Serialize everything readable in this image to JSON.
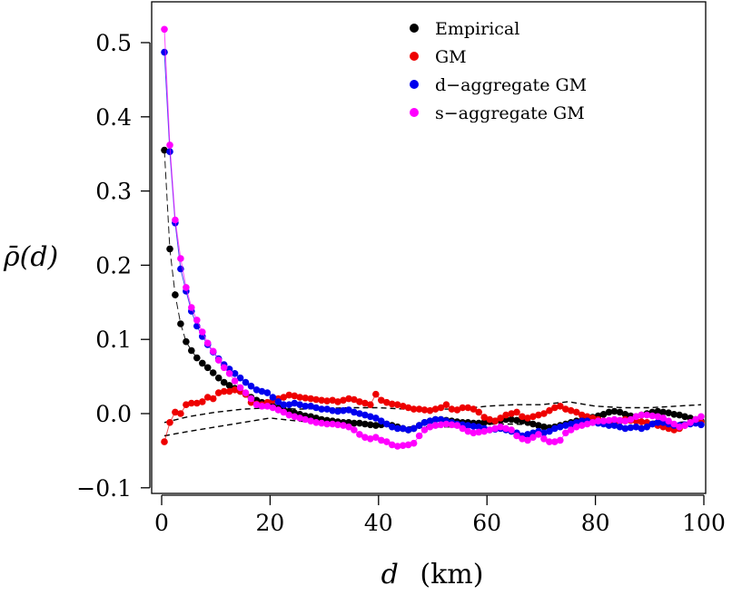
{
  "chart_data": {
    "type": "scatter",
    "title": "",
    "xlabel_var": "d",
    "xlabel_unit": "(km)",
    "ylabel_main": "ρ̄",
    "ylabel_arg": "(d)",
    "xlim": [
      0,
      100
    ],
    "ylim": [
      -0.1,
      0.55
    ],
    "x_ticks": [
      0,
      20,
      40,
      60,
      80,
      100
    ],
    "x_tick_labels": [
      "0",
      "20",
      "40",
      "60",
      "80",
      "100"
    ],
    "y_ticks": [
      -0.1,
      0.0,
      0.1,
      0.2,
      0.3,
      0.4,
      0.5
    ],
    "y_tick_labels": [
      "−0.1",
      "0.0",
      "0.1",
      "0.2",
      "0.3",
      "0.4",
      "0.5"
    ],
    "legend_position": "top-right",
    "legend": [
      {
        "label": "Empirical",
        "color": "#000000"
      },
      {
        "label": "GM",
        "color": "#ee0000"
      },
      {
        "label": "d−aggregate GM",
        "color": "#0000ee"
      },
      {
        "label": "s−aggregate GM",
        "color": "#ff00ff"
      }
    ],
    "series": [
      {
        "name": "Empirical",
        "color": "#000000",
        "x": [
          0.5,
          1.5,
          2.5,
          3.5,
          4.5,
          5.5,
          6.5,
          7.5,
          8.5,
          9.5,
          10.5,
          11.5,
          12.5,
          13.5,
          14.5,
          15.5,
          16.5,
          17.5,
          18.5,
          19.5,
          20.5,
          21.5,
          22.5,
          23.5,
          24.5,
          25.5,
          26.5,
          27.5,
          28.5,
          29.5,
          30.5,
          31.5,
          32.5,
          33.5,
          34.5,
          35.5,
          36.5,
          37.5,
          38.5,
          39.5,
          40.5,
          41.5,
          42.5,
          43.5,
          44.5,
          45.5,
          46.5,
          47.5,
          48.5,
          49.5,
          50.5,
          51.5,
          52.5,
          53.5,
          54.5,
          55.5,
          56.5,
          57.5,
          58.5,
          59.5,
          60.5,
          61.5,
          62.5,
          63.5,
          64.5,
          65.5,
          66.5,
          67.5,
          68.5,
          69.5,
          70.5,
          71.5,
          72.5,
          73.5,
          74.5,
          75.5,
          76.5,
          77.5,
          78.5,
          79.5,
          80.5,
          81.5,
          82.5,
          83.5,
          84.5,
          85.5,
          86.5,
          87.5,
          88.5,
          89.5,
          90.5,
          91.5,
          92.5,
          93.5,
          94.5,
          95.5,
          96.5,
          97.5,
          98.5,
          99.5
        ],
        "y": [
          0.355,
          0.222,
          0.16,
          0.121,
          0.097,
          0.085,
          0.075,
          0.068,
          0.062,
          0.055,
          0.048,
          0.042,
          0.038,
          0.034,
          0.03,
          0.026,
          0.022,
          0.018,
          0.015,
          0.012,
          0.01,
          0.008,
          0.005,
          0.003,
          0.001,
          -0.001,
          -0.003,
          -0.004,
          -0.006,
          -0.008,
          -0.009,
          -0.01,
          -0.011,
          -0.012,
          -0.012,
          -0.013,
          -0.013,
          -0.014,
          -0.015,
          -0.016,
          -0.015,
          -0.014,
          -0.016,
          -0.018,
          -0.02,
          -0.022,
          -0.02,
          -0.016,
          -0.012,
          -0.01,
          -0.008,
          -0.008,
          -0.009,
          -0.01,
          -0.011,
          -0.012,
          -0.012,
          -0.013,
          -0.013,
          -0.012,
          -0.011,
          -0.01,
          -0.009,
          -0.008,
          -0.008,
          -0.009,
          -0.01,
          -0.012,
          -0.014,
          -0.016,
          -0.018,
          -0.019,
          -0.018,
          -0.016,
          -0.014,
          -0.012,
          -0.01,
          -0.009,
          -0.007,
          -0.005,
          -0.003,
          -0.001,
          0.002,
          0.003,
          0.002,
          -0.001,
          -0.003,
          -0.004,
          -0.002,
          0.0,
          0.002,
          0.003,
          0.002,
          0.001,
          -0.001,
          -0.002,
          -0.004,
          -0.006,
          -0.008,
          -0.01
        ]
      },
      {
        "name": "GM",
        "color": "#ee0000",
        "x": [
          0.5,
          1.5,
          2.5,
          3.5,
          4.5,
          5.5,
          6.5,
          7.5,
          8.5,
          9.5,
          10.5,
          11.5,
          12.5,
          13.5,
          14.5,
          15.5,
          16.5,
          17.5,
          18.5,
          19.5,
          20.5,
          21.5,
          22.5,
          23.5,
          24.5,
          25.5,
          26.5,
          27.5,
          28.5,
          29.5,
          30.5,
          31.5,
          32.5,
          33.5,
          34.5,
          35.5,
          36.5,
          37.5,
          38.5,
          39.5,
          40.5,
          41.5,
          42.5,
          43.5,
          44.5,
          45.5,
          46.5,
          47.5,
          48.5,
          49.5,
          50.5,
          51.5,
          52.5,
          53.5,
          54.5,
          55.5,
          56.5,
          57.5,
          58.5,
          59.5,
          60.5,
          61.5,
          62.5,
          63.5,
          64.5,
          65.5,
          66.5,
          67.5,
          68.5,
          69.5,
          70.5,
          71.5,
          72.5,
          73.5,
          74.5,
          75.5,
          76.5,
          77.5,
          78.5,
          79.5,
          80.5,
          81.5,
          82.5,
          83.5,
          84.5,
          85.5,
          86.5,
          87.5,
          88.5,
          89.5,
          90.5,
          91.5,
          92.5,
          93.5,
          94.5,
          95.5,
          96.5,
          97.5,
          98.5,
          99.5
        ],
        "y": [
          -0.038,
          -0.012,
          0.002,
          0.0,
          0.012,
          0.014,
          0.014,
          0.016,
          0.022,
          0.02,
          0.028,
          0.03,
          0.03,
          0.032,
          0.03,
          0.026,
          0.015,
          0.013,
          0.012,
          0.015,
          0.018,
          0.02,
          0.022,
          0.025,
          0.024,
          0.022,
          0.021,
          0.02,
          0.019,
          0.018,
          0.017,
          0.018,
          0.016,
          0.018,
          0.02,
          0.019,
          0.016,
          0.014,
          0.012,
          0.026,
          0.018,
          0.015,
          0.013,
          0.012,
          0.01,
          0.008,
          0.006,
          0.006,
          0.005,
          0.004,
          0.006,
          0.008,
          0.012,
          0.006,
          0.005,
          0.008,
          0.008,
          0.006,
          0.002,
          -0.005,
          -0.008,
          -0.01,
          -0.006,
          -0.002,
          0.0,
          0.002,
          -0.004,
          -0.006,
          -0.004,
          -0.002,
          0.0,
          0.004,
          0.008,
          0.01,
          0.006,
          0.004,
          0.002,
          -0.002,
          -0.004,
          -0.006,
          -0.008,
          -0.01,
          -0.011,
          -0.012,
          -0.01,
          -0.008,
          -0.009,
          -0.01,
          -0.011,
          -0.012,
          -0.014,
          -0.016,
          -0.018,
          -0.02,
          -0.022,
          -0.02,
          -0.016,
          -0.012,
          -0.01,
          -0.012
        ]
      },
      {
        "name": "d−aggregate GM",
        "color": "#0000ee",
        "x": [
          0.5,
          1.5,
          2.5,
          3.5,
          4.5,
          5.5,
          6.5,
          7.5,
          8.5,
          9.5,
          10.5,
          11.5,
          12.5,
          13.5,
          14.5,
          15.5,
          16.5,
          17.5,
          18.5,
          19.5,
          20.5,
          21.5,
          22.5,
          23.5,
          24.5,
          25.5,
          26.5,
          27.5,
          28.5,
          29.5,
          30.5,
          31.5,
          32.5,
          33.5,
          34.5,
          35.5,
          36.5,
          37.5,
          38.5,
          39.5,
          40.5,
          41.5,
          42.5,
          43.5,
          44.5,
          45.5,
          46.5,
          47.5,
          48.5,
          49.5,
          50.5,
          51.5,
          52.5,
          53.5,
          54.5,
          55.5,
          56.5,
          57.5,
          58.5,
          59.5,
          60.5,
          61.5,
          62.5,
          63.5,
          64.5,
          65.5,
          66.5,
          67.5,
          68.5,
          69.5,
          70.5,
          71.5,
          72.5,
          73.5,
          74.5,
          75.5,
          76.5,
          77.5,
          78.5,
          79.5,
          80.5,
          81.5,
          82.5,
          83.5,
          84.5,
          85.5,
          86.5,
          87.5,
          88.5,
          89.5,
          90.5,
          91.5,
          92.5,
          93.5,
          94.5,
          95.5,
          96.5,
          97.5,
          98.5,
          99.5
        ],
        "y": [
          0.487,
          0.353,
          0.257,
          0.195,
          0.165,
          0.138,
          0.118,
          0.104,
          0.093,
          0.083,
          0.074,
          0.066,
          0.06,
          0.054,
          0.048,
          0.042,
          0.037,
          0.032,
          0.03,
          0.028,
          0.022,
          0.016,
          0.012,
          0.012,
          0.014,
          0.012,
          0.01,
          0.01,
          0.008,
          0.006,
          0.006,
          0.004,
          0.003,
          0.004,
          0.005,
          0.002,
          0.0,
          -0.002,
          -0.004,
          -0.006,
          -0.01,
          -0.014,
          -0.018,
          -0.02,
          -0.02,
          -0.022,
          -0.02,
          -0.016,
          -0.012,
          -0.01,
          -0.008,
          -0.008,
          -0.01,
          -0.012,
          -0.014,
          -0.015,
          -0.016,
          -0.017,
          -0.018,
          -0.02,
          -0.022,
          -0.021,
          -0.02,
          -0.022,
          -0.024,
          -0.026,
          -0.03,
          -0.028,
          -0.026,
          -0.024,
          -0.026,
          -0.024,
          -0.02,
          -0.018,
          -0.016,
          -0.014,
          -0.012,
          -0.01,
          -0.01,
          -0.012,
          -0.013,
          -0.014,
          -0.016,
          -0.016,
          -0.018,
          -0.02,
          -0.019,
          -0.018,
          -0.02,
          -0.018,
          -0.014,
          -0.012,
          -0.012,
          -0.014,
          -0.016,
          -0.016,
          -0.015,
          -0.014,
          -0.013,
          -0.015
        ]
      },
      {
        "name": "s−aggregate GM",
        "color": "#ff00ff",
        "x": [
          0.5,
          1.5,
          2.5,
          3.5,
          4.5,
          5.5,
          6.5,
          7.5,
          8.5,
          9.5,
          10.5,
          11.5,
          12.5,
          13.5,
          14.5,
          15.5,
          16.5,
          17.5,
          18.5,
          19.5,
          20.5,
          21.5,
          22.5,
          23.5,
          24.5,
          25.5,
          26.5,
          27.5,
          28.5,
          29.5,
          30.5,
          31.5,
          32.5,
          33.5,
          34.5,
          35.5,
          36.5,
          37.5,
          38.5,
          39.5,
          40.5,
          41.5,
          42.5,
          43.5,
          44.5,
          45.5,
          46.5,
          47.5,
          48.5,
          49.5,
          50.5,
          51.5,
          52.5,
          53.5,
          54.5,
          55.5,
          56.5,
          57.5,
          58.5,
          59.5,
          60.5,
          61.5,
          62.5,
          63.5,
          64.5,
          65.5,
          66.5,
          67.5,
          68.5,
          69.5,
          70.5,
          71.5,
          72.5,
          73.5,
          74.5,
          75.5,
          76.5,
          77.5,
          78.5,
          79.5,
          80.5,
          81.5,
          82.5,
          83.5,
          84.5,
          85.5,
          86.5,
          87.5,
          88.5,
          89.5,
          90.5,
          91.5,
          92.5,
          93.5,
          94.5,
          95.5,
          96.5,
          97.5,
          98.5,
          99.5
        ],
        "y": [
          0.518,
          0.362,
          0.261,
          0.209,
          0.17,
          0.143,
          0.126,
          0.11,
          0.095,
          0.084,
          0.072,
          0.062,
          0.054,
          0.044,
          0.035,
          0.028,
          0.02,
          0.012,
          0.01,
          0.01,
          0.008,
          0.005,
          0.002,
          -0.002,
          -0.004,
          -0.006,
          -0.008,
          -0.01,
          -0.012,
          -0.013,
          -0.014,
          -0.014,
          -0.015,
          -0.016,
          -0.018,
          -0.022,
          -0.028,
          -0.032,
          -0.034,
          -0.032,
          -0.036,
          -0.038,
          -0.042,
          -0.044,
          -0.043,
          -0.042,
          -0.04,
          -0.03,
          -0.022,
          -0.018,
          -0.016,
          -0.015,
          -0.014,
          -0.015,
          -0.016,
          -0.02,
          -0.024,
          -0.026,
          -0.025,
          -0.024,
          -0.022,
          -0.02,
          -0.018,
          -0.02,
          -0.022,
          -0.03,
          -0.034,
          -0.036,
          -0.032,
          -0.028,
          -0.034,
          -0.038,
          -0.038,
          -0.036,
          -0.026,
          -0.022,
          -0.018,
          -0.016,
          -0.014,
          -0.012,
          -0.01,
          -0.01,
          -0.009,
          -0.008,
          -0.009,
          -0.01,
          -0.008,
          -0.004,
          -0.002,
          -0.002,
          -0.003,
          -0.004,
          -0.006,
          -0.01,
          -0.014,
          -0.018,
          -0.016,
          -0.012,
          -0.008,
          -0.004
        ]
      }
    ],
    "envelope": {
      "style": "dashed",
      "color": "#000000",
      "x": [
        0.5,
        5,
        10,
        15,
        20,
        25,
        30,
        35,
        40,
        45,
        50,
        55,
        60,
        65,
        70,
        75,
        80,
        85,
        90,
        95,
        99.5
      ],
      "upper": [
        -0.012,
        -0.004,
        0.002,
        0.006,
        0.008,
        0.006,
        0.007,
        0.008,
        0.008,
        0.006,
        0.006,
        0.006,
        0.01,
        0.012,
        0.012,
        0.016,
        0.01,
        0.008,
        0.008,
        0.01,
        0.012
      ],
      "lower": [
        -0.03,
        -0.024,
        -0.018,
        -0.012,
        -0.006,
        -0.01,
        -0.012,
        -0.014,
        -0.016,
        -0.018,
        -0.018,
        -0.018,
        -0.014,
        -0.014,
        -0.016,
        -0.018,
        -0.014,
        -0.012,
        -0.01,
        -0.012,
        -0.01
      ]
    }
  }
}
